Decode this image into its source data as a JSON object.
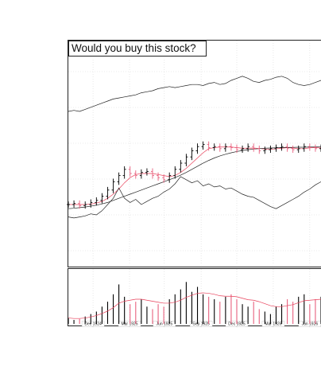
{
  "chart_data": {
    "type": "ohlc",
    "title": "Would you buy this stock?",
    "grid": true,
    "x": [
      0,
      2,
      4,
      6,
      8,
      10,
      12,
      14,
      16,
      18,
      20,
      22,
      24,
      26,
      28,
      30,
      32,
      34,
      36,
      38,
      40,
      42,
      44,
      46,
      48,
      50,
      52,
      54,
      56,
      58,
      60,
      62,
      64,
      66,
      68,
      70,
      72,
      74,
      76,
      78,
      80,
      82,
      84,
      86,
      88,
      90
    ],
    "xlim": [
      0,
      90
    ],
    "xticks": [
      {
        "value": 8.8,
        "label": "Dec 1924"
      },
      {
        "value": 21.8,
        "label": "Mar 1925"
      },
      {
        "value": 34.2,
        "label": "Jun 1925"
      },
      {
        "value": 47.3,
        "label": "Sep 1925"
      },
      {
        "value": 60,
        "label": "Dec 1925"
      },
      {
        "value": 73,
        "label": "Mar 1926"
      },
      {
        "value": 86,
        "label": "Jun 1926"
      }
    ],
    "ylim": [
      0,
      100
    ],
    "up_color": "#000000",
    "down_color": "#e8607e",
    "open": [
      30,
      30,
      30.5,
      29.5,
      30,
      31,
      32,
      34,
      37,
      41,
      44,
      47,
      45,
      44,
      45.5,
      46,
      44,
      43,
      42,
      44,
      47,
      50,
      53,
      56,
      58,
      59,
      57.5,
      58,
      57,
      58,
      57.5,
      56.5,
      57,
      58,
      57,
      56,
      56.5,
      57,
      57.5,
      58,
      57,
      56.5,
      57,
      58,
      57.5,
      57
    ],
    "high": [
      31.5,
      32,
      32,
      31.5,
      32.5,
      33.5,
      35.5,
      38.5,
      42.5,
      45.5,
      48.5,
      48.5,
      46.5,
      47,
      47.5,
      47.5,
      45.5,
      44.5,
      45.5,
      48.5,
      51.5,
      54.5,
      57.5,
      59.5,
      60.5,
      60.5,
      59.5,
      59.5,
      59.5,
      59.5,
      59,
      58.5,
      59.5,
      59.5,
      58.5,
      58,
      58.5,
      59,
      59.5,
      59.5,
      58.5,
      58.5,
      59.5,
      59.5,
      59,
      59
    ],
    "low": [
      28.5,
      28.5,
      28,
      28,
      28.5,
      29.5,
      30.5,
      32.5,
      35.5,
      39.5,
      42.5,
      43.5,
      42.5,
      42.5,
      44,
      42.5,
      41.5,
      40.5,
      40.5,
      42.5,
      45.5,
      48.5,
      51.5,
      54.5,
      56.5,
      56,
      56,
      55.5,
      55.5,
      56,
      55,
      55,
      55.5,
      55.5,
      54.5,
      54.5,
      55,
      55.5,
      56,
      55.5,
      55,
      55,
      55.5,
      56,
      55.5,
      55.5
    ],
    "close": [
      30,
      30.5,
      29.5,
      30,
      31,
      32,
      34,
      37,
      41,
      44,
      47,
      45,
      44,
      45.5,
      46,
      44,
      43,
      42,
      44,
      47,
      50,
      53,
      56,
      58,
      59,
      57.5,
      58,
      57,
      58,
      57.5,
      56.5,
      57,
      58,
      57,
      56,
      56.5,
      57,
      57.5,
      58,
      57,
      56.5,
      57,
      58,
      57.5,
      57,
      57.5
    ],
    "lines": [
      {
        "color": "#e8405a",
        "values": [
          30,
          30,
          30,
          30,
          30.2,
          30.7,
          31.5,
          33,
          35,
          37.5,
          40.5,
          43,
          44.5,
          45,
          45,
          45,
          44.5,
          44,
          43.5,
          44,
          45.5,
          47.5,
          50,
          52.5,
          55,
          57,
          57.5,
          57.8,
          57.8,
          57.8,
          57.5,
          57.2,
          57.2,
          57.3,
          57.1,
          56.8,
          56.7,
          56.9,
          57.2,
          57.5,
          57.3,
          57,
          57,
          57.4,
          57.5,
          57.3
        ]
      },
      {
        "color": "#222222",
        "values": [
          28,
          28.2,
          28.5,
          28.8,
          29.2,
          29.7,
          30.3,
          31,
          32,
          33,
          34,
          35,
          36,
          37,
          38,
          39,
          40,
          41,
          42,
          43,
          44.2,
          45.5,
          47,
          48.5,
          50,
          51.3,
          52.5,
          53.5,
          54.3,
          55,
          55.6,
          56.1,
          56.5,
          56.8,
          57,
          57.2,
          57.3,
          57.4,
          57.5,
          57.6,
          57.6,
          57.7,
          57.7,
          57.8,
          57.8,
          57.9
        ]
      },
      {
        "color": "#222222",
        "values": [
          75,
          75.5,
          75,
          76,
          77,
          78,
          79,
          80,
          81,
          81.5,
          82,
          82.5,
          83,
          84,
          84.5,
          85,
          86,
          86.5,
          87,
          86.5,
          87,
          87.5,
          88,
          88,
          87.5,
          88.5,
          89,
          88,
          88.5,
          90,
          91,
          92,
          91,
          89.5,
          89,
          90,
          90.5,
          91.5,
          92,
          91,
          89,
          88,
          87.5,
          88,
          89,
          90
        ]
      },
      {
        "color": "#222222",
        "values": [
          24,
          23.5,
          24,
          24.5,
          25.5,
          25,
          27,
          30,
          33,
          38,
          33,
          31,
          32.5,
          30,
          31.5,
          33,
          34,
          36,
          37.5,
          40,
          43.5,
          42,
          40.5,
          41.5,
          39,
          40,
          38.5,
          39,
          37.5,
          38,
          36.5,
          35,
          34,
          33.5,
          32,
          30.5,
          29,
          28,
          29.5,
          31,
          32.5,
          34,
          36,
          37.5,
          39.5,
          41
        ]
      }
    ],
    "volume": {
      "ylim": [
        0,
        100
      ],
      "values": [
        12,
        8,
        10,
        15,
        20,
        25,
        35,
        45,
        60,
        80,
        55,
        40,
        45,
        50,
        35,
        30,
        40,
        35,
        50,
        60,
        70,
        85,
        65,
        75,
        60,
        55,
        50,
        45,
        55,
        60,
        50,
        40,
        35,
        45,
        30,
        25,
        20,
        35,
        40,
        50,
        45,
        55,
        60,
        40,
        50,
        55
      ],
      "average": {
        "color": "#e8405a",
        "values": [
          12,
          11,
          11,
          12,
          14,
          17,
          21,
          26,
          33,
          42,
          46,
          48,
          50,
          50,
          48,
          46,
          44,
          42,
          42,
          44,
          48,
          54,
          58,
          62,
          63,
          62,
          60,
          57,
          56,
          56,
          55,
          52,
          49,
          48,
          45,
          41,
          37,
          35,
          35,
          37,
          39,
          43,
          47,
          48,
          49,
          50
        ]
      }
    }
  }
}
